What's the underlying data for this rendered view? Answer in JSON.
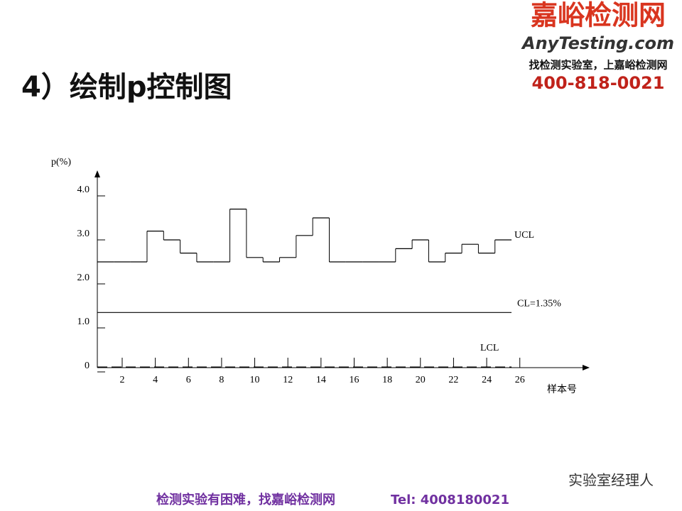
{
  "header": {
    "title": "4）绘制p控制图"
  },
  "logo": {
    "name": "嘉峪检测网",
    "site": "AnyTesting.com",
    "slogan": "找检测实验室，上嘉峪检测网",
    "phone": "400-818-0021"
  },
  "watermark": "实验室经理人",
  "footer": {
    "text": "检测实验有困难，找嘉峪检测网",
    "tel": "Tel: 4008180021"
  },
  "chart_data": {
    "type": "step",
    "ylabel": "p(%)",
    "xlabel": "样本号",
    "x": [
      1,
      2,
      3,
      4,
      5,
      6,
      7,
      8,
      9,
      10,
      11,
      12,
      13,
      14,
      15,
      16,
      17,
      18,
      19,
      20,
      21,
      22,
      23,
      24,
      25
    ],
    "ucl": {
      "label": "UCL",
      "values": [
        2.5,
        2.5,
        2.5,
        3.2,
        3.0,
        2.7,
        2.5,
        2.5,
        3.7,
        2.6,
        2.5,
        2.6,
        3.1,
        3.5,
        2.5,
        2.5,
        2.5,
        2.5,
        2.8,
        3.0,
        2.5,
        2.7,
        2.9,
        2.7,
        3.0
      ]
    },
    "cl": {
      "label": "CL=1.35%",
      "value": 1.35
    },
    "lcl": {
      "label": "LCL",
      "value": 0
    },
    "color": "#000000",
    "xlim": [
      0.5,
      30
    ],
    "xticks": [
      2,
      4,
      6,
      8,
      10,
      12,
      14,
      16,
      18,
      20,
      22,
      24,
      26
    ],
    "ylim": [
      0,
      4.5
    ],
    "yticks": [
      0,
      {
        "value": 1,
        "label": "1.0"
      },
      {
        "value": 2,
        "label": "2.0"
      },
      {
        "value": 3,
        "label": "3.0"
      },
      {
        "value": 4,
        "label": "4.0"
      }
    ]
  }
}
